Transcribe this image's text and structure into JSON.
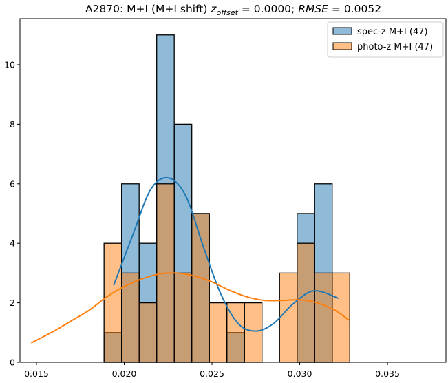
{
  "chart_data": {
    "type": "bar",
    "title_prefix": "A2870: M+I (M+I shift) ",
    "title_z": "z",
    "title_z_sub": "offset",
    "title_mid": " = 0.0000; ",
    "title_rmse": "RMSE",
    "title_suffix": " = 0.0052",
    "xlabel": "",
    "ylabel": "",
    "xlim": [
      0.01406,
      0.03833
    ],
    "ylim": [
      0,
      11.55
    ],
    "xticks": [
      0.015,
      0.02,
      0.025,
      0.03,
      0.035
    ],
    "xtick_labels": [
      "0.015",
      "0.020",
      "0.025",
      "0.030",
      "0.035"
    ],
    "yticks": [
      0,
      2,
      4,
      6,
      8,
      10
    ],
    "ytick_labels": [
      "0",
      "2",
      "4",
      "6",
      "8",
      "10"
    ],
    "grid": false,
    "legend_position": "top-right",
    "bin_edges": [
      0.01885,
      0.01985,
      0.02085,
      0.02185,
      0.02285,
      0.02385,
      0.02485,
      0.02585,
      0.02685,
      0.02785,
      0.02885,
      0.02985,
      0.03085,
      0.03185,
      0.03285
    ],
    "empty_spec_range_end": 0.0369,
    "series": [
      {
        "name": "spec-z M+I (47)",
        "color": "#1f77b4",
        "values": [
          1,
          6,
          4,
          11,
          8,
          5,
          0,
          1,
          0,
          0,
          0,
          5,
          6,
          0
        ],
        "kde": {
          "x": [
            0.0194,
            0.0205,
            0.0215,
            0.0225,
            0.0235,
            0.0245,
            0.0255,
            0.0265,
            0.0275,
            0.0285,
            0.0295,
            0.0305,
            0.0312,
            0.0322
          ],
          "y": [
            2.59,
            4.3,
            5.8,
            6.2,
            5.6,
            3.9,
            2.3,
            1.3,
            1.05,
            1.3,
            1.9,
            2.35,
            2.38,
            2.15
          ]
        }
      },
      {
        "name": "photo-z M+I (47)",
        "color": "#ff7f0e",
        "values": [
          4,
          3,
          2,
          6,
          3,
          5,
          2,
          2,
          2,
          0,
          3,
          4,
          3,
          3
        ],
        "kde": {
          "x": [
            0.0147,
            0.016,
            0.017,
            0.018,
            0.019,
            0.02,
            0.021,
            0.022,
            0.023,
            0.024,
            0.025,
            0.026,
            0.027,
            0.028,
            0.029,
            0.03,
            0.031,
            0.032,
            0.0328
          ],
          "y": [
            0.65,
            1.05,
            1.4,
            1.75,
            2.2,
            2.55,
            2.8,
            2.97,
            3.0,
            2.9,
            2.7,
            2.42,
            2.2,
            2.08,
            2.08,
            2.1,
            2.0,
            1.75,
            1.42
          ]
        }
      }
    ]
  }
}
